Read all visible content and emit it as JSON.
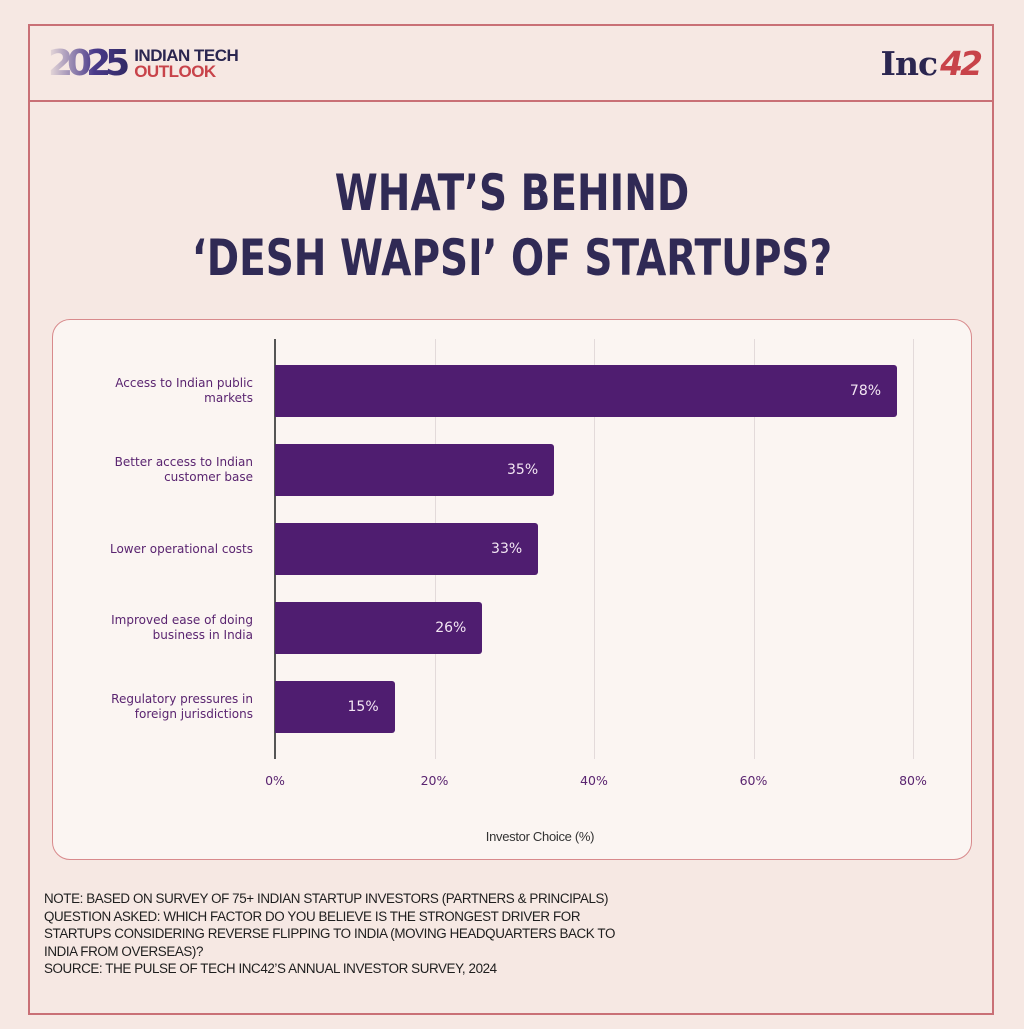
{
  "header": {
    "brand_year": "2025",
    "brand_line1": "INDIAN TECH",
    "brand_line2": "OUTLOOK",
    "publisher_inc": "Inc",
    "publisher_num": "42"
  },
  "title": {
    "line1": "WHAT’S BEHIND",
    "line2": "‘DESH WAPSI’ OF STARTUPS?"
  },
  "colors": {
    "bar": "#4f1d70",
    "frame": "#c97076",
    "title": "#302a55",
    "accent_red": "#c8434a",
    "background": "#f6e8e3",
    "panel": "#fbf5f2"
  },
  "chart_data": {
    "type": "bar",
    "orientation": "horizontal",
    "title": "WHAT’S BEHIND ‘DESH WAPSI’ OF STARTUPS?",
    "categories": [
      "Access to Indian public markets",
      "Better access to Indian customer base",
      "Lower operational costs",
      "Improved ease of doing business in India",
      "Regulatory pressures in foreign jurisdictions"
    ],
    "category_lines": [
      [
        "Access to Indian public",
        "markets"
      ],
      [
        "Better access to Indian",
        "customer base"
      ],
      [
        "Lower operational costs"
      ],
      [
        "Improved ease of doing",
        "business in India"
      ],
      [
        "Regulatory pressures in",
        "foreign jurisdictions"
      ]
    ],
    "values": [
      78,
      35,
      33,
      26,
      15
    ],
    "value_labels": [
      "78%",
      "35%",
      "33%",
      "26%",
      "15%"
    ],
    "xlabel": "Investor Choice (%)",
    "ylabel": "",
    "xlim": [
      0,
      80
    ],
    "x_ticks": [
      "0%",
      "20%",
      "40%",
      "60%",
      "80%"
    ],
    "grid": "vertical",
    "legend": "none"
  },
  "notes": {
    "line1": "NOTE: BASED ON SURVEY OF 75+ INDIAN STARTUP INVESTORS (PARTNERS & PRINCIPALS)",
    "line2": "QUESTION ASKED: WHICH FACTOR DO YOU BELIEVE IS THE STRONGEST DRIVER FOR",
    "line3": "STARTUPS CONSIDERING REVERSE FLIPPING TO INDIA (MOVING HEADQUARTERS BACK TO",
    "line4": "INDIA FROM OVERSEAS)?",
    "line5": "SOURCE: THE PULSE OF TECH INC42’S ANNUAL INVESTOR SURVEY, 2024"
  }
}
